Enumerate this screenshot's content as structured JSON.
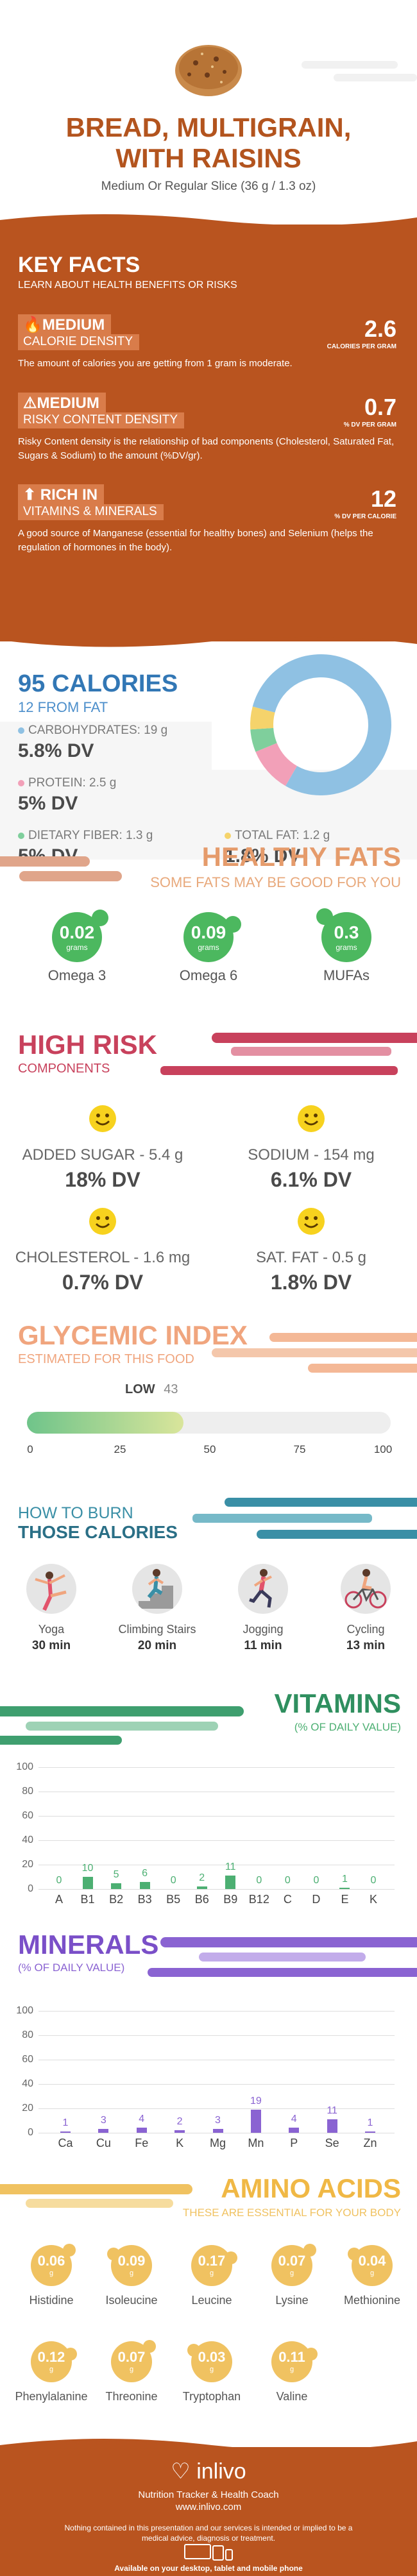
{
  "header": {
    "title_line1": "BREAD, MULTIGRAIN,",
    "title_line2": "WITH RAISINS",
    "serving": "Medium Or Regular Slice (36 g / 1.3 oz)"
  },
  "key_facts": {
    "title": "KEY FACTS",
    "subtitle": "LEARN ABOUT HEALTH BENEFITS OR RISKS",
    "facts": [
      {
        "icon": "fire-icon",
        "level": "MEDIUM",
        "label": "CALORIE DENSITY",
        "value": "2.6",
        "unit": "CALORIES PER GRAM",
        "desc": "The amount of calories you are getting from 1 gram is moderate."
      },
      {
        "icon": "warning-icon",
        "level": "MEDIUM",
        "label": "RISKY CONTENT DENSITY",
        "value": "0.7",
        "unit": "% DV PER GRAM",
        "desc": "Risky Content density is the relationship of bad components (Cholesterol, Saturated Fat, Sugars & Sodium) to the amount (%DV/gr)."
      },
      {
        "icon": "arrow-up-icon",
        "level": "RICH IN",
        "label": "VITAMINS & MINERALS",
        "value": "12",
        "unit": "% DV PER CALORIE",
        "desc": "A good source of Manganese (essential for healthy bones) and Selenium (helps the regulation of hormones in the body)."
      }
    ]
  },
  "calories": {
    "title": "95 CALORIES",
    "subtitle": "12 FROM FAT",
    "nutrients": [
      {
        "label": "CARBOHYDRATES: 19 g",
        "dv": "5.8% DV",
        "color": "#8fc1e3"
      },
      {
        "label": "PROTEIN: 2.5 g",
        "dv": "5% DV",
        "color": "#f2a0b8"
      },
      {
        "label": "DIETARY FIBER: 1.3 g",
        "dv": "5% DV",
        "color": "#7fcf9c"
      },
      {
        "label": "TOTAL FAT: 1.2 g",
        "dv": "1.8% DV",
        "color": "#f5d36b"
      }
    ],
    "donut": [
      {
        "name": "carbohydrates",
        "value": 76,
        "color": "#8fc1e3"
      },
      {
        "name": "protein",
        "value": 10,
        "color": "#f2a0b8"
      },
      {
        "name": "fiber",
        "value": 5,
        "color": "#7fcf9c"
      },
      {
        "name": "fat",
        "value": 5,
        "color": "#f5d36b"
      }
    ]
  },
  "healthy_fats": {
    "title": "HEALTHY FATS",
    "subtitle": "SOME FATS MAY BE GOOD FOR YOU",
    "unit": "grams",
    "items": [
      {
        "value": "0.02",
        "name": "Omega 3"
      },
      {
        "value": "0.09",
        "name": "Omega 6"
      },
      {
        "value": "0.3",
        "name": "MUFAs"
      }
    ]
  },
  "high_risk": {
    "title": "HIGH RISK",
    "subtitle": "COMPONENTS",
    "items": [
      {
        "label": "ADDED SUGAR - 5.4 g",
        "dv": "18% DV"
      },
      {
        "label": "SODIUM - 154 mg",
        "dv": "6.1% DV"
      },
      {
        "label": "CHOLESTEROL - 1.6 mg",
        "dv": "0.7% DV"
      },
      {
        "label": "SAT. FAT - 0.5 g",
        "dv": "1.8% DV"
      }
    ]
  },
  "glycemic": {
    "title": "GLYCEMIC INDEX",
    "subtitle": "ESTIMATED FOR THIS FOOD",
    "level": "LOW",
    "value": 43,
    "value_text": "43",
    "max": 100,
    "ticks": [
      "0",
      "25",
      "50",
      "75",
      "100"
    ]
  },
  "burn": {
    "title_line1": "HOW TO BURN",
    "title_line2": "THOSE CALORIES",
    "activities": [
      {
        "name": "Yoga",
        "time": "30 min",
        "icon": "yoga-icon"
      },
      {
        "name": "Climbing Stairs",
        "time": "20 min",
        "icon": "stairs-icon"
      },
      {
        "name": "Jogging",
        "time": "11 min",
        "icon": "jogging-icon"
      },
      {
        "name": "Cycling",
        "time": "13 min",
        "icon": "cycling-icon"
      }
    ]
  },
  "vitamins": {
    "title": "VITAMINS",
    "subtitle": "(% OF DAILY VALUE)"
  },
  "minerals": {
    "title": "MINERALS",
    "subtitle": "(% OF DAILY VALUE)"
  },
  "chart_data": [
    {
      "type": "bar",
      "categories": [
        "A",
        "B1",
        "B2",
        "B3",
        "B5",
        "B6",
        "B9",
        "B12",
        "C",
        "D",
        "E",
        "K"
      ],
      "values": [
        0,
        10,
        5,
        6,
        0,
        2,
        11,
        0,
        0,
        0,
        1,
        0
      ],
      "value_labels": [
        "0",
        "10",
        "5",
        "6",
        "0",
        "2",
        "11",
        "0",
        "0",
        "0",
        "1",
        "0"
      ],
      "yticks": [
        "0",
        "20",
        "40",
        "60",
        "80",
        "100"
      ],
      "ylim": [
        0,
        100
      ],
      "grid": true,
      "color": "#4caf72"
    },
    {
      "type": "bar",
      "categories": [
        "Ca",
        "Cu",
        "Fe",
        "K",
        "Mg",
        "Mn",
        "P",
        "Se",
        "Zn"
      ],
      "values": [
        1,
        3,
        4,
        2,
        3,
        19,
        4,
        11,
        1
      ],
      "value_labels": [
        "1",
        "3",
        "4",
        "2",
        "3",
        "19",
        "4",
        "11",
        "1"
      ],
      "yticks": [
        "0",
        "20",
        "40",
        "60",
        "80",
        "100"
      ],
      "ylim": [
        0,
        100
      ],
      "grid": true,
      "color": "#8a63d2"
    }
  ],
  "amino": {
    "title": "AMINO ACIDS",
    "subtitle": "THESE ARE ESSENTIAL FOR YOUR BODY",
    "unit": "g",
    "items": [
      {
        "value": "0.06",
        "name": "Histidine"
      },
      {
        "value": "0.09",
        "name": "Isoleucine"
      },
      {
        "value": "0.17",
        "name": "Leucine"
      },
      {
        "value": "0.07",
        "name": "Lysine"
      },
      {
        "value": "0.04",
        "name": "Methionine"
      },
      {
        "value": "0.12",
        "name": "Phenylalanine"
      },
      {
        "value": "0.07",
        "name": "Threonine"
      },
      {
        "value": "0.03",
        "name": "Tryptophan"
      },
      {
        "value": "0.11",
        "name": "Valine"
      }
    ]
  },
  "footer": {
    "brand": "inlivo",
    "tagline": "Nutrition Tracker & Health Coach",
    "url": "www.inlivo.com",
    "disclaimer": "Nothing contained in this presentation and our services is intended or implied to be a medical advice, diagnosis or treatment.",
    "available": "Available on your desktop, tablet and mobile phone"
  }
}
